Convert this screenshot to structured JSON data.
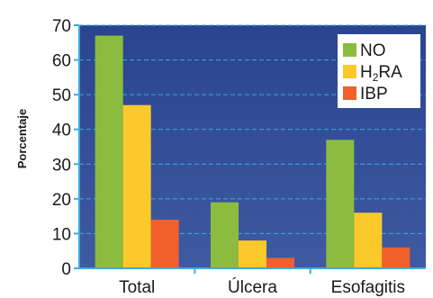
{
  "chart_data": {
    "type": "bar",
    "title": "",
    "xlabel": "",
    "ylabel": "Porcentaje",
    "ylim": [
      0,
      70
    ],
    "yticks": [
      0,
      10,
      20,
      30,
      40,
      50,
      60,
      70
    ],
    "categories": [
      "Total",
      "Úlcera",
      "Esofagitis"
    ],
    "series": [
      {
        "name": "NO",
        "color": "#8cbc3f",
        "values": [
          67,
          19,
          37
        ]
      },
      {
        "name": "H2RA",
        "color": "#fcc92b",
        "values": [
          47,
          8,
          16
        ]
      },
      {
        "name": "IBP",
        "color": "#f1602a",
        "values": [
          14,
          3,
          6
        ]
      }
    ],
    "legend_placement": "top-right",
    "grid": true,
    "grid_style": "dashed",
    "plot_background": "#2e4791",
    "grid_color": "#3fa9e0"
  }
}
